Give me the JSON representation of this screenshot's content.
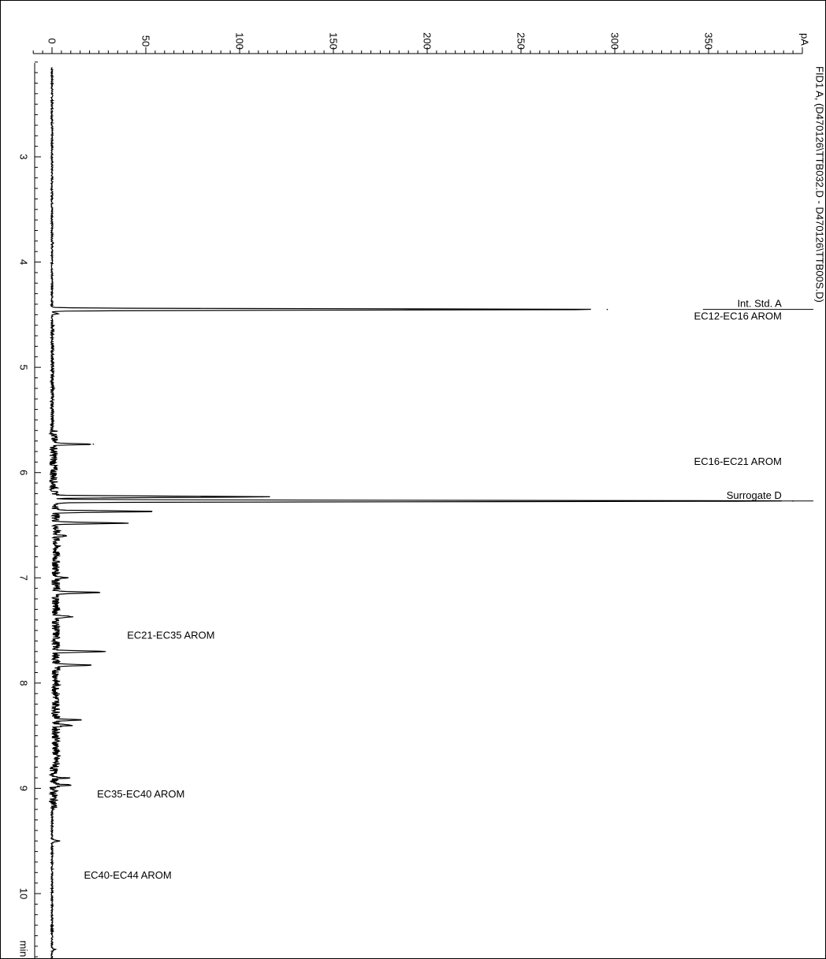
{
  "chart_data": {
    "type": "line",
    "orientation": "rotated-90",
    "title": "FID1 A, (D470126\\TTB032.D - D470126\\TTB00S.D)",
    "x_unit": "min",
    "y_unit": "pA",
    "xlim": [
      2.1,
      10.7
    ],
    "ylim": [
      -10,
      400
    ],
    "x_ticks": [
      3,
      4,
      5,
      6,
      7,
      8,
      9,
      10
    ],
    "y_ticks": [
      0,
      50,
      100,
      150,
      200,
      250,
      300,
      350
    ],
    "peaks": [
      {
        "x": 3.82,
        "y": 0.8
      },
      {
        "x": 4.45,
        "y": 296
      },
      {
        "x": 4.49,
        "y": 3
      },
      {
        "x": 5.73,
        "y": 22
      },
      {
        "x": 6.23,
        "y": 112
      },
      {
        "x": 6.27,
        "y": 395
      },
      {
        "x": 6.37,
        "y": 53
      },
      {
        "x": 6.48,
        "y": 38
      },
      {
        "x": 6.6,
        "y": 6
      },
      {
        "x": 7.0,
        "y": 7
      },
      {
        "x": 7.14,
        "y": 24
      },
      {
        "x": 7.37,
        "y": 10
      },
      {
        "x": 7.7,
        "y": 27
      },
      {
        "x": 7.83,
        "y": 20
      },
      {
        "x": 8.35,
        "y": 14
      },
      {
        "x": 8.4,
        "y": 9
      },
      {
        "x": 8.9,
        "y": 7
      },
      {
        "x": 8.97,
        "y": 10
      },
      {
        "x": 9.5,
        "y": 4
      },
      {
        "x": 10.53,
        "y": 1.5
      }
    ],
    "annotations": [
      {
        "label": "Int. Std. A",
        "x": 4.45,
        "y": 389,
        "underline": true
      },
      {
        "label": "EC12-EC16 AROM",
        "x": 4.57,
        "y": 389,
        "underline": false
      },
      {
        "label": "EC16-EC21 AROM",
        "x": 5.95,
        "y": 389,
        "underline": false
      },
      {
        "label": "Surrogate D",
        "x": 6.27,
        "y": 389,
        "underline": true
      },
      {
        "label": "EC21-EC35 AROM",
        "x": 7.6,
        "y": 40,
        "underline": false
      },
      {
        "label": "EC35-EC40 AROM",
        "x": 9.11,
        "y": 24,
        "underline": false
      },
      {
        "label": "EC40-EC44 AROM",
        "x": 9.88,
        "y": 17,
        "underline": false
      }
    ]
  }
}
